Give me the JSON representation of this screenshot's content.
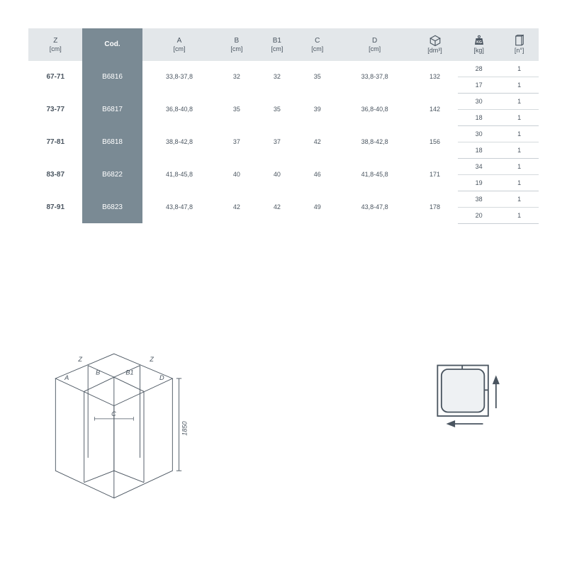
{
  "table": {
    "header_bg": "#e3e7ea",
    "cod_bg": "#7a8a94",
    "text_color": "#4a5560",
    "columns": [
      {
        "label": "Z",
        "unit": "[cm]"
      },
      {
        "label": "Cod.",
        "unit": ""
      },
      {
        "label": "A",
        "unit": "[cm]"
      },
      {
        "label": "B",
        "unit": "[cm]"
      },
      {
        "label": "B1",
        "unit": "[cm]"
      },
      {
        "label": "C",
        "unit": "[cm]"
      },
      {
        "label": "D",
        "unit": "[cm]"
      },
      {
        "label": "_volume_icon",
        "unit": "[dm³]"
      },
      {
        "label": "_weight_icon",
        "unit": "[kg]"
      },
      {
        "label": "_pack_icon",
        "unit": "[n°]"
      }
    ],
    "groups": [
      {
        "z": "67-71",
        "cod": "B6816",
        "a": "33,8-37,8",
        "b": "32",
        "b1": "32",
        "c": "35",
        "d": "33,8-37,8",
        "vol": "132",
        "sub": [
          {
            "kg": "28",
            "n": "1"
          },
          {
            "kg": "17",
            "n": "1"
          }
        ]
      },
      {
        "z": "73-77",
        "cod": "B6817",
        "a": "36,8-40,8",
        "b": "35",
        "b1": "35",
        "c": "39",
        "d": "36,8-40,8",
        "vol": "142",
        "sub": [
          {
            "kg": "30",
            "n": "1"
          },
          {
            "kg": "18",
            "n": "1"
          }
        ]
      },
      {
        "z": "77-81",
        "cod": "B6818",
        "a": "38,8-42,8",
        "b": "37",
        "b1": "37",
        "c": "42",
        "d": "38,8-42,8",
        "vol": "156",
        "sub": [
          {
            "kg": "30",
            "n": "1"
          },
          {
            "kg": "18",
            "n": "1"
          }
        ]
      },
      {
        "z": "83-87",
        "cod": "B6822",
        "a": "41,8-45,8",
        "b": "40",
        "b1": "40",
        "c": "46",
        "d": "41,8-45,8",
        "vol": "171",
        "sub": [
          {
            "kg": "34",
            "n": "1"
          },
          {
            "kg": "19",
            "n": "1"
          }
        ]
      },
      {
        "z": "87-91",
        "cod": "B6823",
        "a": "43,8-47,8",
        "b": "42",
        "b1": "42",
        "c": "49",
        "d": "43,8-47,8",
        "vol": "178",
        "sub": [
          {
            "kg": "38",
            "n": "1"
          },
          {
            "kg": "20",
            "n": "1"
          }
        ]
      }
    ]
  },
  "iso_diagram": {
    "height_label": "1850",
    "labels": {
      "Z1": "Z",
      "Z2": "Z",
      "A": "A",
      "B": "B",
      "B1": "B1",
      "D": "D",
      "C": "C"
    },
    "stroke": "#4a5560"
  },
  "plan_diagram": {
    "stroke": "#4a5560",
    "fill": "#e8ebed"
  }
}
